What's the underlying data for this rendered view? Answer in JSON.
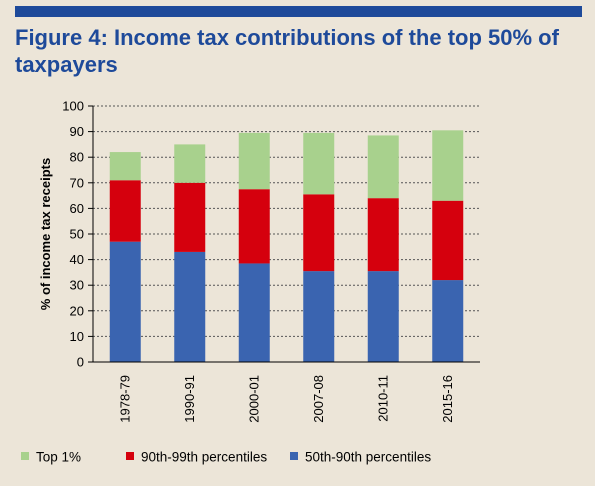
{
  "chart_data": {
    "type": "bar",
    "stacked": true,
    "title": "Figure 4: Income tax contributions of the top 50% of taxpayers",
    "xlabel": "",
    "ylabel": "% of income tax receipts",
    "ylim": [
      0,
      100
    ],
    "yticks": [
      0,
      10,
      20,
      30,
      40,
      50,
      60,
      70,
      80,
      90,
      100
    ],
    "grid": true,
    "legend_position": "bottom",
    "categories": [
      "1978-79",
      "1990-91",
      "2000-01",
      "2007-08",
      "2010-11",
      "2015-16"
    ],
    "series": [
      {
        "name": "50th-90th percentiles",
        "color": "#3a64b0",
        "values": [
          47,
          43,
          38.5,
          35.5,
          35.5,
          32
        ]
      },
      {
        "name": "90th-99th percentiles",
        "color": "#d5000d",
        "values": [
          24,
          27,
          29,
          30,
          28.5,
          31
        ]
      },
      {
        "name": "Top 1%",
        "color": "#a8d18d",
        "values": [
          11,
          15,
          22,
          24,
          24.5,
          27.5
        ]
      }
    ],
    "legend_order": [
      2,
      1,
      0
    ]
  }
}
